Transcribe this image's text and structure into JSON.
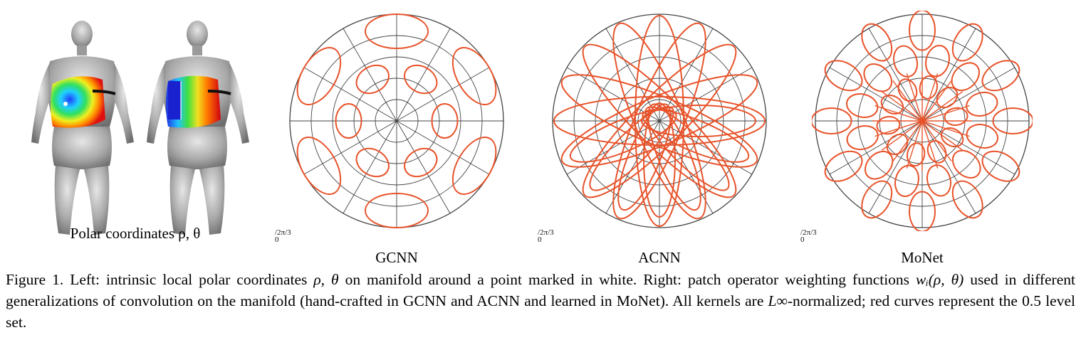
{
  "left_panel": {
    "caption_text": "Polar coordinates ρ, θ"
  },
  "polar_plots": [
    {
      "label": "GCNN"
    },
    {
      "label": "ACNN"
    },
    {
      "label": "MoNet"
    }
  ],
  "tick_stub": {
    "top": "/2π/3",
    "bottom": "0"
  },
  "caption": {
    "text_1": "Figure 1. Left: intrinsic local polar coordinates ",
    "math_1": "ρ, θ",
    "text_2": " on manifold around a point marked in white. Right: patch operator weighting functions ",
    "math_2": "wᵢ(ρ, θ)",
    "text_3": " used in different generalizations of convolution on the manifold (hand-crafted in GCNN and ACNN and learned in MoNet). All kernels are ",
    "math_3": "L∞",
    "text_4": "-normalized; red curves represent the ",
    "math_4": "0.5",
    "text_5": " level set."
  },
  "colors": {
    "curve": "#e8532a",
    "grid": "#444444"
  }
}
